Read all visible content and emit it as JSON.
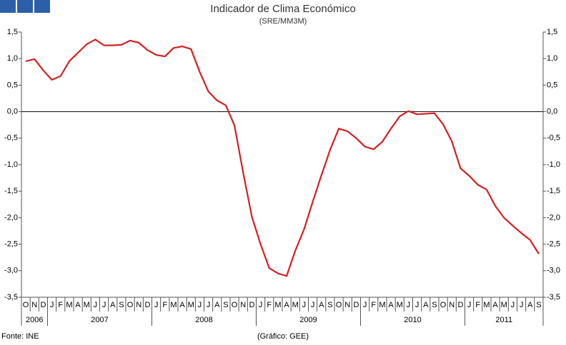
{
  "chart_data": {
    "type": "line",
    "title": "Indicador de Clima Económico",
    "subtitle": "(SRE/MM3M)",
    "source": "Fonte: INE",
    "credit": "(Gráfico: GEE)",
    "categories": [
      "O",
      "N",
      "D",
      "J",
      "F",
      "M",
      "A",
      "M",
      "J",
      "J",
      "A",
      "S",
      "O",
      "N",
      "D",
      "J",
      "F",
      "M",
      "A",
      "M",
      "J",
      "J",
      "A",
      "S",
      "O",
      "N",
      "D",
      "J",
      "F",
      "M",
      "A",
      "M",
      "J",
      "J",
      "A",
      "S",
      "O",
      "N",
      "D",
      "J",
      "F",
      "M",
      "A",
      "M",
      "J",
      "J",
      "A",
      "S",
      "O",
      "N",
      "D",
      "J",
      "F",
      "M",
      "A",
      "M",
      "J",
      "J",
      "A",
      "S"
    ],
    "years": [
      "2006",
      "2007",
      "2008",
      "2009",
      "2010",
      "2011"
    ],
    "values": [
      0.95,
      0.99,
      0.78,
      0.6,
      0.67,
      0.95,
      1.11,
      1.27,
      1.36,
      1.25,
      1.25,
      1.26,
      1.34,
      1.3,
      1.16,
      1.07,
      1.04,
      1.2,
      1.23,
      1.18,
      0.75,
      0.38,
      0.21,
      0.12,
      -0.26,
      -1.15,
      -1.98,
      -2.5,
      -2.95,
      -3.05,
      -3.1,
      -2.62,
      -2.22,
      -1.7,
      -1.2,
      -0.72,
      -0.32,
      -0.37,
      -0.5,
      -0.66,
      -0.71,
      -0.57,
      -0.32,
      -0.09,
      0.01,
      -0.05,
      -0.04,
      -0.03,
      -0.24,
      -0.56,
      -1.07,
      -1.21,
      -1.38,
      -1.47,
      -1.78,
      -2.0,
      -2.15,
      -2.29,
      -2.42,
      -2.68
    ],
    "color": "#d42020",
    "ylim": [
      -3.5,
      1.5
    ],
    "yticks": [
      {
        "value": 1.5,
        "label": "1,5"
      },
      {
        "value": 1.0,
        "label": "1,0"
      },
      {
        "value": 0.5,
        "label": "0,5"
      },
      {
        "value": 0,
        "label": "0,0"
      },
      {
        "value": -0.5,
        "label": "-0,5"
      },
      {
        "value": -1.0,
        "label": "-1,0"
      },
      {
        "value": -1.5,
        "label": "-1,5"
      },
      {
        "value": -2.0,
        "label": "-2,0"
      },
      {
        "value": -2.5,
        "label": "-2,5"
      },
      {
        "value": -3.0,
        "label": "-3,0"
      },
      {
        "value": -3.5,
        "label": "-3,5"
      }
    ]
  }
}
